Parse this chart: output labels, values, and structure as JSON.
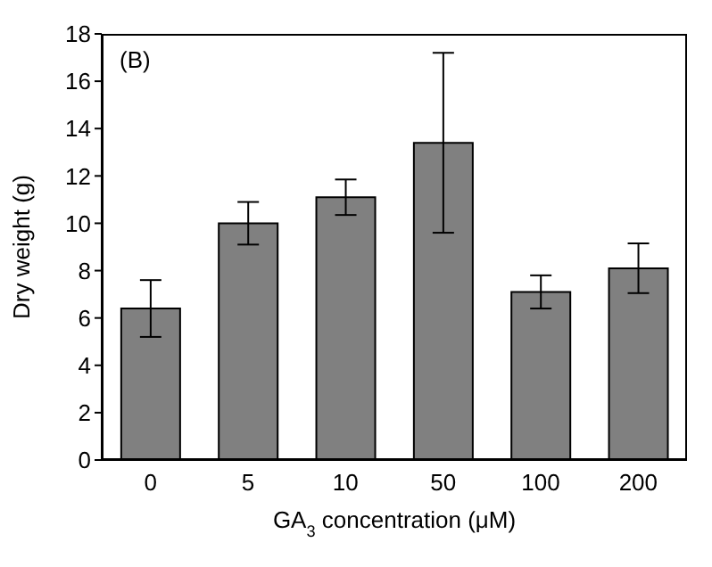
{
  "chart_data": {
    "type": "bar",
    "xlabel": "GA$_{3}$ concentration (μM)",
    "ylabel": "Dry weight (g)",
    "annotations": [
      "(B)"
    ],
    "categories": [
      "0",
      "5",
      "10",
      "50",
      "100",
      "200"
    ],
    "values": [
      6.4,
      10.0,
      11.1,
      13.4,
      7.1,
      8.1
    ],
    "errors": [
      1.2,
      0.9,
      0.75,
      3.8,
      0.7,
      1.05
    ],
    "color": "#808080",
    "ylim": [
      0,
      18
    ],
    "yticks": [
      0,
      2,
      4,
      6,
      8,
      10,
      12,
      14,
      16,
      18
    ],
    "grid": false,
    "legend": false
  }
}
